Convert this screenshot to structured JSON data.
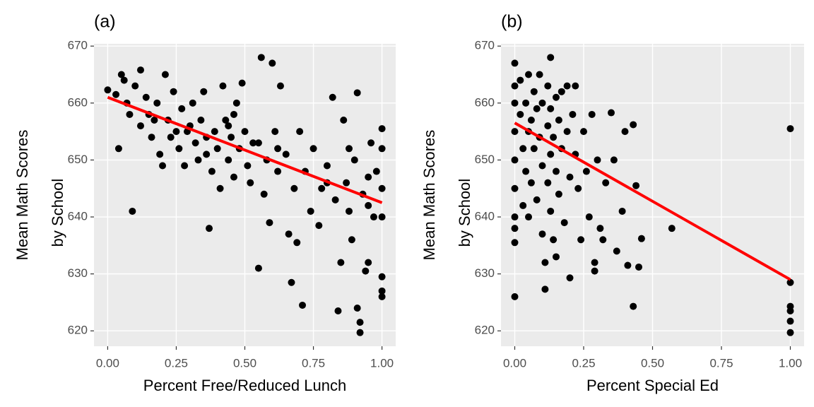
{
  "chart_data": [
    {
      "type": "scatter",
      "title": "(a)",
      "x_label": "Percent Free/Reduced Lunch",
      "y_label": [
        "Mean Math Scores",
        "by School"
      ],
      "color": "#000000",
      "grid": true,
      "xlim": [
        -0.05,
        1.05
      ],
      "ylim": [
        617.3,
        670.4
      ],
      "xticks": [
        {
          "value": 0,
          "label": "0.00"
        },
        {
          "value": 0.25,
          "label": "0.25"
        },
        {
          "value": 0.5,
          "label": "0.50"
        },
        {
          "value": 0.75,
          "label": "0.75"
        },
        {
          "value": 1,
          "label": "1.00"
        }
      ],
      "yticks": [
        620,
        630,
        640,
        650,
        660,
        670
      ],
      "x": [
        0.0,
        0.03,
        0.05,
        0.04,
        0.06,
        0.07,
        0.08,
        0.09,
        0.1,
        0.12,
        0.12,
        0.14,
        0.15,
        0.16,
        0.18,
        0.19,
        0.2,
        0.21,
        0.22,
        0.24,
        0.25,
        0.26,
        0.27,
        0.28,
        0.3,
        0.31,
        0.32,
        0.33,
        0.34,
        0.35,
        0.36,
        0.37,
        0.38,
        0.39,
        0.4,
        0.41,
        0.42,
        0.43,
        0.44,
        0.45,
        0.46,
        0.47,
        0.48,
        0.49,
        0.5,
        0.51,
        0.52,
        0.53,
        0.55,
        0.56,
        0.57,
        0.58,
        0.59,
        0.6,
        0.61,
        0.62,
        0.63,
        0.65,
        0.66,
        0.67,
        0.68,
        0.69,
        0.7,
        0.71,
        0.72,
        0.74,
        0.75,
        0.77,
        0.78,
        0.8,
        0.82,
        0.83,
        0.84,
        0.85,
        0.86,
        0.87,
        0.88,
        0.89,
        0.9,
        0.91,
        0.91,
        0.92,
        0.92,
        0.93,
        0.94,
        0.95,
        0.95,
        0.96,
        0.97,
        0.98,
        1.0,
        1.0,
        1.0,
        1.0,
        1.0,
        1.0,
        1.0,
        0.55,
        0.46,
        0.29,
        0.23,
        0.17,
        0.36,
        0.44,
        0.62,
        0.8,
        0.88,
        0.95
      ],
      "values": [
        662.3,
        661.5,
        665,
        652,
        664,
        660,
        658,
        641,
        663,
        665.8,
        656,
        661,
        658,
        654,
        660,
        651,
        649,
        665,
        657,
        662,
        655,
        652,
        659,
        649,
        656,
        660,
        653,
        650,
        657,
        662,
        654,
        638,
        648,
        655,
        652,
        645,
        663,
        657,
        650,
        654,
        647,
        660,
        652,
        663.5,
        655,
        649,
        646,
        653,
        631,
        668,
        644,
        650,
        639,
        667,
        655,
        648,
        663,
        651,
        637,
        628.5,
        645,
        635.5,
        655,
        624.5,
        648,
        641,
        652,
        638.5,
        645,
        649,
        661,
        643,
        623.5,
        632,
        657,
        646,
        641,
        636,
        650,
        661.8,
        624,
        619.7,
        621.5,
        644,
        630.5,
        632,
        647,
        653,
        640,
        648,
        655.5,
        652,
        645,
        640,
        629.5,
        627,
        626,
        653,
        658,
        655,
        654,
        657,
        651,
        656,
        652,
        646,
        652,
        642
      ],
      "fit": {
        "x": [
          0,
          1
        ],
        "values": [
          661,
          642.5
        ],
        "color": "#ff0000"
      }
    },
    {
      "type": "scatter",
      "title": "(b)",
      "x_label": "Percent Special Ed",
      "y_label": [
        "Mean Math Scores",
        "by School"
      ],
      "color": "#000000",
      "grid": true,
      "xlim": [
        -0.05,
        1.05
      ],
      "ylim": [
        617.3,
        670.4
      ],
      "xticks": [
        {
          "value": 0,
          "label": "0.00"
        },
        {
          "value": 0.25,
          "label": "0.25"
        },
        {
          "value": 0.5,
          "label": "0.50"
        },
        {
          "value": 0.75,
          "label": "0.75"
        },
        {
          "value": 1,
          "label": "1.00"
        }
      ],
      "yticks": [
        620,
        630,
        640,
        650,
        660,
        670
      ],
      "x": [
        0.0,
        0.0,
        0.0,
        0.0,
        0.0,
        0.0,
        0.0,
        0.0,
        0.0,
        0.0,
        0.02,
        0.02,
        0.03,
        0.03,
        0.04,
        0.04,
        0.05,
        0.05,
        0.05,
        0.06,
        0.06,
        0.07,
        0.07,
        0.08,
        0.08,
        0.09,
        0.09,
        0.1,
        0.1,
        0.1,
        0.11,
        0.11,
        0.12,
        0.12,
        0.12,
        0.13,
        0.13,
        0.13,
        0.13,
        0.14,
        0.14,
        0.15,
        0.15,
        0.15,
        0.16,
        0.16,
        0.17,
        0.17,
        0.18,
        0.19,
        0.19,
        0.2,
        0.2,
        0.21,
        0.22,
        0.22,
        0.23,
        0.24,
        0.25,
        0.26,
        0.27,
        0.28,
        0.29,
        0.29,
        0.3,
        0.31,
        0.32,
        0.33,
        0.35,
        0.36,
        0.37,
        0.39,
        0.4,
        0.41,
        0.43,
        0.43,
        0.44,
        0.45,
        0.46,
        0.57,
        1.0,
        1.0,
        1.0,
        1.0,
        1.0,
        1.0
      ],
      "values": [
        667,
        663,
        660,
        655,
        650,
        645,
        640,
        638,
        635.5,
        626,
        664,
        658,
        652,
        642,
        660,
        648,
        665,
        655,
        640,
        657,
        646,
        662,
        652,
        659,
        643,
        665,
        654,
        660,
        649,
        637,
        632,
        627.3,
        663,
        656,
        646,
        668,
        659,
        651,
        641,
        654,
        636,
        661,
        648,
        633,
        657,
        644,
        662,
        652,
        639,
        663,
        655,
        647,
        629.3,
        658,
        663,
        651,
        645,
        636,
        655,
        648,
        640,
        658,
        632,
        630.5,
        650,
        638,
        636,
        646,
        658.3,
        650,
        634,
        641,
        655,
        631.5,
        624.3,
        656.2,
        645.5,
        631.2,
        636.2,
        638,
        655.5,
        628.5,
        624.3,
        623.5,
        621.7,
        619.7
      ],
      "fit": {
        "x": [
          0,
          1
        ],
        "values": [
          656.5,
          629
        ],
        "color": "#ff0000"
      }
    }
  ]
}
